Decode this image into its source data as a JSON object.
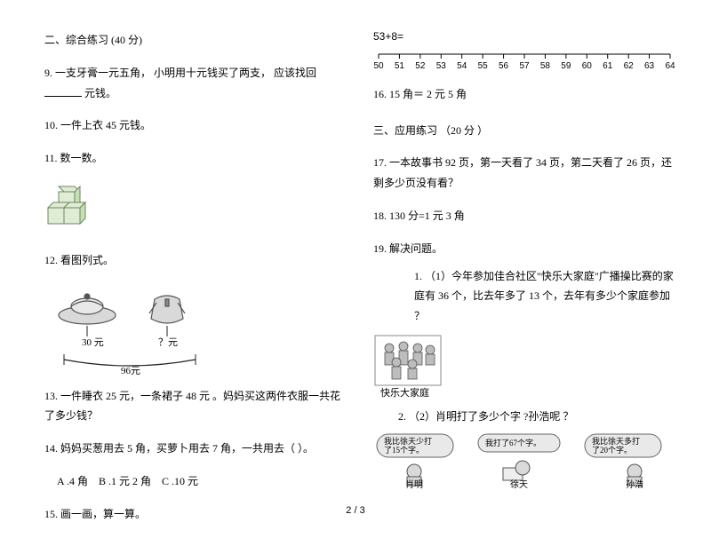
{
  "colors": {
    "text": "#000000",
    "bg": "#ffffff",
    "cube_fill": "#e0ecd6",
    "cube_stroke": "#6a8a5a",
    "line": "#222222",
    "gray_fill": "#d9d9d9",
    "gray_stroke": "#555555",
    "bubble_fill": "#e9e9e9"
  },
  "left": {
    "section2_title": "二、综合练习 (40 分)",
    "q9": {
      "pre": "9. 一支牙膏一元五角， 小明用十元钱买了两支， 应该找回 ",
      "post": "元钱。"
    },
    "q10": "10. 一件上衣 45 元钱。",
    "q11": "11. 数一数。",
    "q12": "12. 看图列式。",
    "fig12": {
      "left_price": "30 元",
      "right_price": "？元",
      "total": "96元"
    },
    "q13": "13. 一件睡衣 25 元，一条裙子 48 元 。妈妈买这两件衣服一共花了多少钱？",
    "q14": "14. 妈妈买葱用去 5 角，买萝卜用去 7 角，一共用去（ ）。",
    "q14_choices": {
      "a": "A .4 角",
      "b": "B .1 元 2 角",
      "c": "C .10 元"
    },
    "q15": "15. 画一画，算一算。"
  },
  "right": {
    "q15_expr": "53+8=",
    "numberline": {
      "start": 50,
      "end": 64,
      "ticks": [
        50,
        51,
        52,
        53,
        54,
        55,
        56,
        57,
        58,
        59,
        60,
        61,
        62,
        63,
        64
      ]
    },
    "q16": "16. 15 角＝ 2 元 5 角",
    "section3_title": "三、应用练习 （20 分 ）",
    "q17": "17. 一本故事书 92 页，第一天看了 34 页，第二天看了 26 页，还剩多少页没有看？",
    "q18": "18. 130 分=1 元 3 角",
    "q19": "19. 解决问题。",
    "q19_1": "1. （1）今年参加佳合社区\"快乐大家庭\"广播操比赛的家庭有 36 个，比去年多了 13 个，去年有多少个家庭参加 ？",
    "fig19_caption": "快乐大家庭",
    "q19_2": "2. （2）肖明打了多少个字 ?孙浩呢 ？",
    "kids": {
      "b1": {
        "l1": "我比徐天少打",
        "l2": "了15个字。",
        "name": "肖明"
      },
      "b2": {
        "l1": "我打了67个字。",
        "name": "徐天"
      },
      "b3": {
        "l1": "我比徐天多打",
        "l2": "了20个字。",
        "name": "孙浩"
      }
    }
  },
  "pagenum": "2 / 3"
}
